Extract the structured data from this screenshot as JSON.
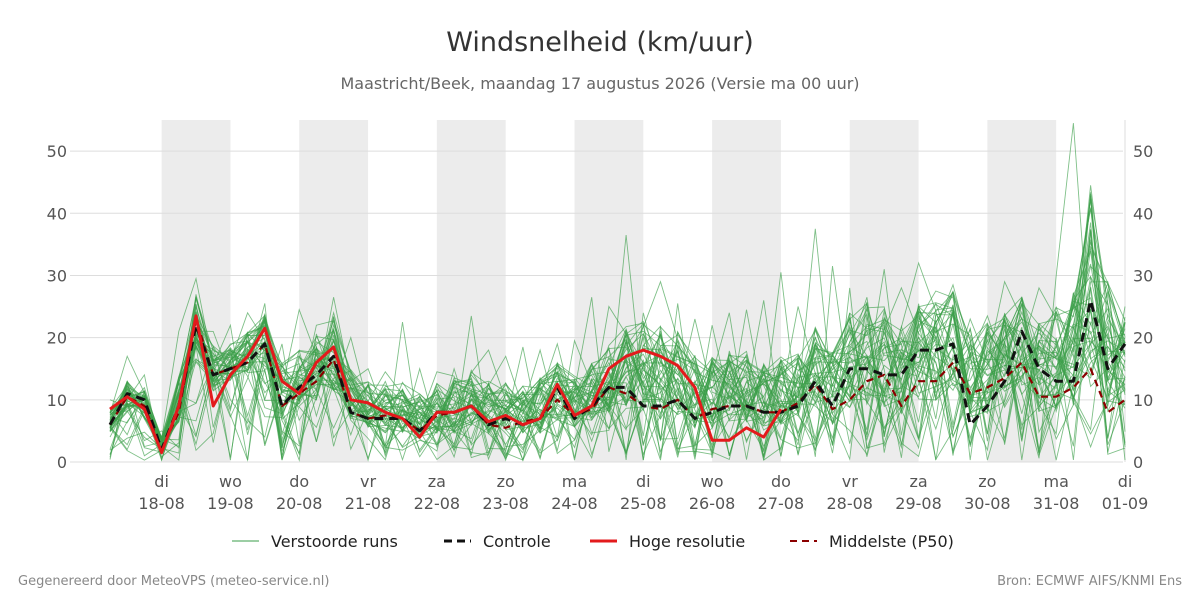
{
  "chart_data": {
    "type": "line",
    "title": "Windsnelheid (km/uur)",
    "subtitle": "Maastricht/Beek, maandag 17 augustus 2026 (Versie ma 00 uur)",
    "ylim": [
      0,
      55
    ],
    "yticks": [
      0,
      10,
      20,
      30,
      40,
      50
    ],
    "x_start": "2026-08-17T06:00",
    "x_end": "2026-09-01T00:00",
    "x_ticks": [
      {
        "date": "2026-08-18",
        "day": "di",
        "label": "18-08"
      },
      {
        "date": "2026-08-19",
        "day": "wo",
        "label": "19-08"
      },
      {
        "date": "2026-08-20",
        "day": "do",
        "label": "20-08"
      },
      {
        "date": "2026-08-21",
        "day": "vr",
        "label": "21-08"
      },
      {
        "date": "2026-08-22",
        "day": "za",
        "label": "22-08"
      },
      {
        "date": "2026-08-23",
        "day": "zo",
        "label": "23-08"
      },
      {
        "date": "2026-08-24",
        "day": "ma",
        "label": "24-08"
      },
      {
        "date": "2026-08-25",
        "day": "di",
        "label": "25-08"
      },
      {
        "date": "2026-08-26",
        "day": "wo",
        "label": "26-08"
      },
      {
        "date": "2026-08-27",
        "day": "do",
        "label": "27-08"
      },
      {
        "date": "2026-08-28",
        "day": "vr",
        "label": "28-08"
      },
      {
        "date": "2026-08-29",
        "day": "za",
        "label": "29-08"
      },
      {
        "date": "2026-08-30",
        "day": "zo",
        "label": "30-08"
      },
      {
        "date": "2026-08-31",
        "day": "ma",
        "label": "31-08"
      },
      {
        "date": "2026-09-01",
        "day": "di",
        "label": "01-09"
      }
    ],
    "shaded_days": [
      "2026-08-18",
      "2026-08-20",
      "2026-08-22",
      "2026-08-24",
      "2026-08-26",
      "2026-08-28",
      "2026-08-30"
    ],
    "grid": true,
    "legend_position": "bottom",
    "colors": {
      "ensemble": "#3a9e48",
      "control": "#111111",
      "high_res": "#e31a1c",
      "median": "#8b0000",
      "shade": "#ececec",
      "grid": "#dddddd"
    },
    "series": [
      {
        "name": "Controle",
        "x": [
          "2026-08-17T06:00",
          "2026-08-17T12:00",
          "2026-08-17T18:00",
          "2026-08-18T00:00",
          "2026-08-18T06:00",
          "2026-08-18T12:00",
          "2026-08-18T18:00",
          "2026-08-19T00:00",
          "2026-08-19T06:00",
          "2026-08-19T12:00",
          "2026-08-19T18:00",
          "2026-08-20T00:00",
          "2026-08-20T06:00",
          "2026-08-20T12:00",
          "2026-08-20T18:00",
          "2026-08-21T00:00",
          "2026-08-21T06:00",
          "2026-08-21T12:00",
          "2026-08-21T18:00",
          "2026-08-22T00:00",
          "2026-08-22T06:00",
          "2026-08-22T12:00",
          "2026-08-22T18:00",
          "2026-08-23T00:00",
          "2026-08-23T06:00",
          "2026-08-23T12:00",
          "2026-08-23T18:00",
          "2026-08-24T00:00",
          "2026-08-24T06:00",
          "2026-08-24T12:00",
          "2026-08-24T18:00",
          "2026-08-25T00:00",
          "2026-08-25T06:00",
          "2026-08-25T12:00",
          "2026-08-25T18:00",
          "2026-08-26T00:00",
          "2026-08-26T06:00",
          "2026-08-26T12:00",
          "2026-08-26T18:00",
          "2026-08-27T00:00",
          "2026-08-27T06:00",
          "2026-08-27T12:00",
          "2026-08-27T18:00",
          "2026-08-28T00:00",
          "2026-08-28T06:00",
          "2026-08-28T12:00",
          "2026-08-28T18:00",
          "2026-08-29T00:00",
          "2026-08-29T06:00",
          "2026-08-29T12:00",
          "2026-08-29T18:00",
          "2026-08-30T00:00",
          "2026-08-30T06:00",
          "2026-08-30T12:00",
          "2026-08-30T18:00",
          "2026-08-31T00:00",
          "2026-08-31T06:00",
          "2026-08-31T12:00",
          "2026-08-31T18:00",
          "2026-09-01T00:00"
        ],
        "y": [
          6,
          11,
          10,
          2,
          9,
          22,
          14,
          15,
          16,
          19,
          9,
          12,
          14,
          17,
          8,
          7,
          7,
          7,
          5,
          8,
          8,
          9,
          6,
          7,
          6,
          7,
          12,
          7,
          9,
          12,
          12,
          9,
          9,
          10,
          7,
          8,
          9,
          9,
          8,
          8,
          9,
          13,
          9,
          15,
          15,
          14,
          14,
          18,
          18,
          19,
          6,
          9,
          13,
          21,
          15,
          13,
          13,
          26,
          15,
          19
        ]
      },
      {
        "name": "Hoge resolutie",
        "x": [
          "2026-08-17T06:00",
          "2026-08-17T12:00",
          "2026-08-17T18:00",
          "2026-08-18T00:00",
          "2026-08-18T06:00",
          "2026-08-18T12:00",
          "2026-08-18T18:00",
          "2026-08-19T00:00",
          "2026-08-19T06:00",
          "2026-08-19T12:00",
          "2026-08-19T18:00",
          "2026-08-20T00:00",
          "2026-08-20T06:00",
          "2026-08-20T12:00",
          "2026-08-20T18:00",
          "2026-08-21T00:00",
          "2026-08-21T06:00",
          "2026-08-21T12:00",
          "2026-08-21T18:00",
          "2026-08-22T00:00",
          "2026-08-22T06:00",
          "2026-08-22T12:00",
          "2026-08-22T18:00",
          "2026-08-23T00:00",
          "2026-08-23T06:00",
          "2026-08-23T12:00",
          "2026-08-23T18:00",
          "2026-08-24T00:00",
          "2026-08-24T06:00",
          "2026-08-24T12:00",
          "2026-08-24T18:00",
          "2026-08-25T00:00",
          "2026-08-25T06:00",
          "2026-08-25T12:00",
          "2026-08-25T18:00",
          "2026-08-26T00:00",
          "2026-08-26T06:00",
          "2026-08-26T12:00",
          "2026-08-26T18:00",
          "2026-08-27T00:00"
        ],
        "y": [
          8.5,
          10.5,
          8.5,
          1.5,
          9,
          23.5,
          9,
          14,
          17,
          21.5,
          13,
          11,
          16,
          18.5,
          10,
          9.5,
          8,
          7,
          4,
          8,
          8,
          9,
          6.5,
          7.5,
          6,
          7,
          12.5,
          7.5,
          9,
          15,
          17,
          18,
          17,
          15.5,
          12,
          3.5,
          3.5,
          5.5,
          4,
          8.5
        ]
      },
      {
        "name": "Middelste (P50)",
        "x": [
          "2026-08-17T06:00",
          "2026-08-17T12:00",
          "2026-08-17T18:00",
          "2026-08-18T00:00",
          "2026-08-18T06:00",
          "2026-08-18T12:00",
          "2026-08-18T18:00",
          "2026-08-19T00:00",
          "2026-08-19T06:00",
          "2026-08-19T12:00",
          "2026-08-19T18:00",
          "2026-08-20T00:00",
          "2026-08-20T06:00",
          "2026-08-20T12:00",
          "2026-08-20T18:00",
          "2026-08-21T00:00",
          "2026-08-21T06:00",
          "2026-08-21T12:00",
          "2026-08-21T18:00",
          "2026-08-22T00:00",
          "2026-08-22T06:00",
          "2026-08-22T12:00",
          "2026-08-22T18:00",
          "2026-08-23T00:00",
          "2026-08-23T06:00",
          "2026-08-23T12:00",
          "2026-08-23T18:00",
          "2026-08-24T00:00",
          "2026-08-24T06:00",
          "2026-08-24T12:00",
          "2026-08-24T18:00",
          "2026-08-25T00:00",
          "2026-08-25T06:00",
          "2026-08-25T12:00",
          "2026-08-25T18:00",
          "2026-08-26T00:00",
          "2026-08-26T06:00",
          "2026-08-26T12:00",
          "2026-08-26T18:00",
          "2026-08-27T00:00",
          "2026-08-27T06:00",
          "2026-08-27T12:00",
          "2026-08-27T18:00",
          "2026-08-28T00:00",
          "2026-08-28T06:00",
          "2026-08-28T12:00",
          "2026-08-28T18:00",
          "2026-08-29T00:00",
          "2026-08-29T06:00",
          "2026-08-29T12:00",
          "2026-08-29T18:00",
          "2026-08-30T00:00",
          "2026-08-30T06:00",
          "2026-08-30T12:00",
          "2026-08-30T18:00",
          "2026-08-31T00:00",
          "2026-08-31T06:00",
          "2026-08-31T12:00",
          "2026-08-31T18:00",
          "2026-09-01T00:00"
        ],
        "y": [
          6,
          10.5,
          9,
          2,
          8,
          23,
          14,
          15,
          16,
          19,
          9,
          11,
          13,
          16.5,
          8,
          7,
          7.5,
          7,
          5,
          7.5,
          8,
          9,
          6,
          5.5,
          6.5,
          7,
          10,
          7.5,
          8.5,
          12,
          11,
          9,
          8.5,
          10,
          7,
          8.5,
          9,
          9,
          8,
          8,
          9.5,
          12.5,
          8.5,
          10,
          13,
          14,
          9,
          13,
          13,
          16,
          11,
          12,
          13.5,
          16,
          10.5,
          10.5,
          12,
          15,
          8,
          10
        ]
      }
    ],
    "ensemble": {
      "name": "Verstoorde runs",
      "members": 50,
      "x_start": "2026-08-17T06:00",
      "step_hours": 6,
      "p10": [
        4,
        7,
        6,
        1,
        5,
        14,
        10,
        12,
        12,
        13,
        5,
        7,
        8,
        9,
        5,
        4,
        3,
        3,
        2,
        3,
        3,
        4,
        3,
        3,
        3,
        3,
        5,
        4,
        5,
        6,
        6,
        5,
        4,
        5,
        3,
        3,
        4,
        4,
        3,
        4,
        5,
        6,
        4,
        6,
        6,
        6,
        5,
        7,
        7,
        8,
        4,
        5,
        6,
        8,
        5,
        5,
        5,
        6,
        4,
        5
      ],
      "p90": [
        9,
        13,
        12,
        4,
        14,
        27,
        19,
        19,
        21,
        24,
        16,
        18,
        21,
        24,
        15,
        13,
        13,
        13,
        11,
        13,
        14,
        15,
        13,
        13,
        13,
        14,
        16,
        14,
        16,
        19,
        22,
        23,
        22,
        21,
        18,
        17,
        18,
        18,
        16,
        17,
        18,
        22,
        18,
        24,
        26,
        25,
        23,
        26,
        26,
        28,
        22,
        23,
        24,
        27,
        24,
        25,
        28,
        44,
        30,
        24
      ],
      "max": [
        10,
        17,
        14,
        5,
        21,
        29.5,
        21,
        22,
        24,
        25.5,
        19,
        24.5,
        22,
        26.5,
        20,
        15,
        14.5,
        22.5,
        15,
        14.5,
        15,
        23.5,
        18,
        17,
        18.5,
        18,
        19,
        19.5,
        26.5,
        25,
        36.5,
        24,
        29,
        25.5,
        23,
        22,
        24,
        24.5,
        26,
        30.5,
        25,
        37.5,
        31.5,
        28,
        26.5,
        31,
        28,
        32,
        27.5,
        28.5,
        23,
        23.5,
        29,
        22.5,
        28,
        30,
        54.5,
        44.5,
        29,
        25
      ]
    }
  },
  "legend": {
    "perturbed": "Verstoorde runs",
    "control": "Controle",
    "high_res": "Hoge resolutie",
    "median": "Middelste (P50)"
  },
  "footer": {
    "left": "Gegenereerd door MeteoVPS (meteo-service.nl)",
    "right": "Bron: ECMWF AIFS/KNMI Ens"
  }
}
